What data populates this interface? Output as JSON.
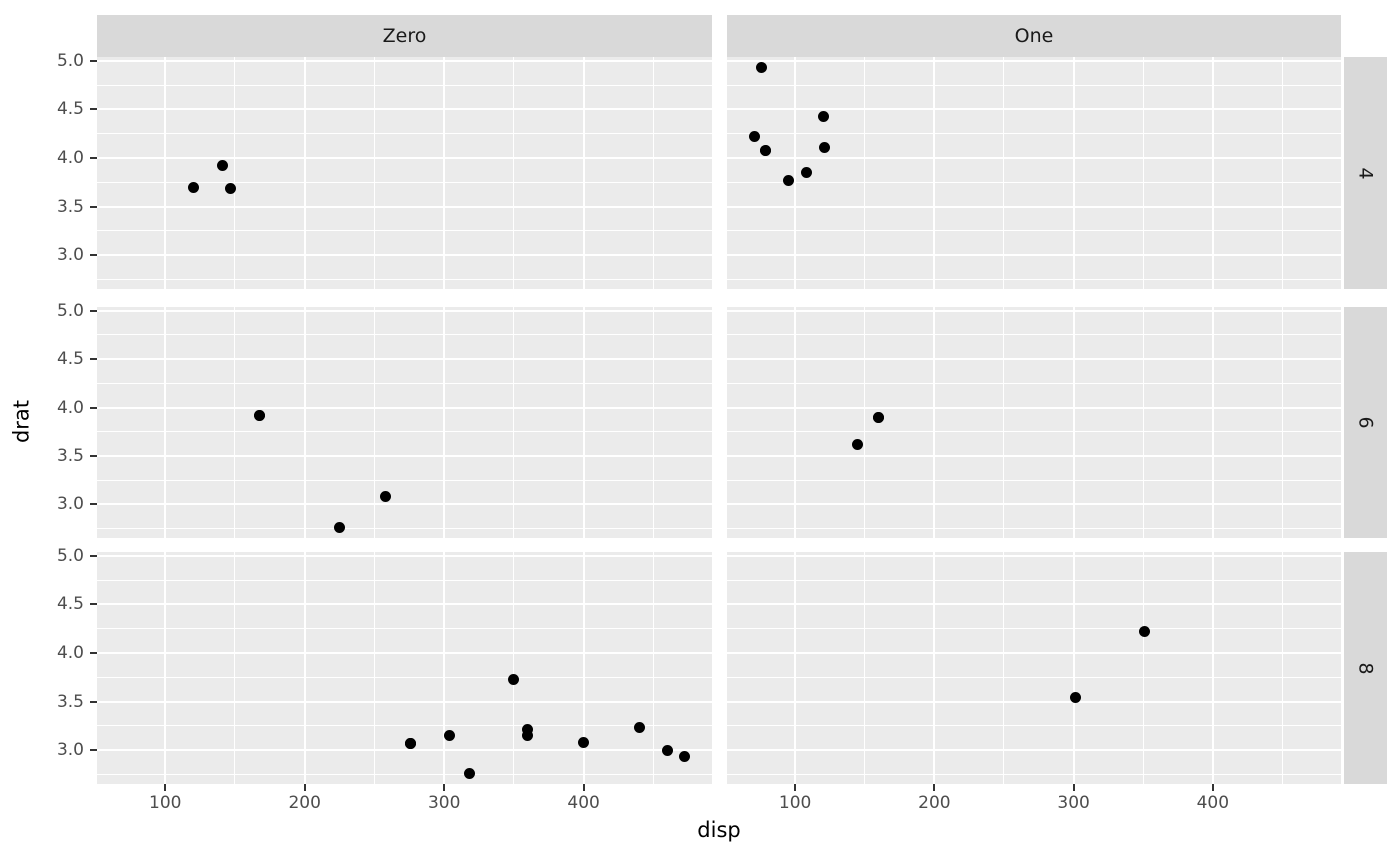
{
  "chart_data": {
    "type": "scatter",
    "title": "",
    "xlabel": "disp",
    "ylabel": "drat",
    "col_facets": [
      "Zero",
      "One"
    ],
    "row_facets": [
      "4",
      "6",
      "8"
    ],
    "x_domain": [
      51.05,
      492.05
    ],
    "y_domain": [
      2.6515,
      5.0385
    ],
    "x_major_ticks": [
      100,
      200,
      300,
      400
    ],
    "x_minor_ticks": [
      150,
      250,
      350,
      450
    ],
    "x_tick_labels": [
      "100",
      "200",
      "300",
      "400"
    ],
    "y_major_ticks": [
      5.0,
      4.5,
      4.0,
      3.5,
      3.0
    ],
    "y_minor_ticks": [
      4.75,
      4.25,
      3.75,
      3.25,
      2.75
    ],
    "y_tick_labels": [
      "5.0",
      "4.5",
      "4.0",
      "3.5",
      "3.0"
    ],
    "grid": true,
    "legend": false,
    "facets": [
      {
        "col": "Zero",
        "row": "4",
        "points": [
          [
            120.1,
            3.7
          ],
          [
            140.8,
            3.92
          ],
          [
            146.7,
            3.69
          ]
        ]
      },
      {
        "col": "One",
        "row": "4",
        "points": [
          [
            108.0,
            3.85
          ],
          [
            78.7,
            4.08
          ],
          [
            75.7,
            4.93
          ],
          [
            71.1,
            4.22
          ],
          [
            79.0,
            4.08
          ],
          [
            120.3,
            4.43
          ],
          [
            95.1,
            3.77
          ],
          [
            121.0,
            4.11
          ]
        ]
      },
      {
        "col": "Zero",
        "row": "6",
        "points": [
          [
            258.0,
            3.08
          ],
          [
            225.0,
            2.76
          ],
          [
            167.6,
            3.92
          ],
          [
            167.6,
            3.92
          ]
        ]
      },
      {
        "col": "One",
        "row": "6",
        "points": [
          [
            160.0,
            3.9
          ],
          [
            160.0,
            3.9
          ],
          [
            145.0,
            3.62
          ]
        ]
      },
      {
        "col": "Zero",
        "row": "8",
        "points": [
          [
            360.0,
            3.15
          ],
          [
            360.0,
            3.21
          ],
          [
            275.8,
            3.07
          ],
          [
            275.8,
            3.07
          ],
          [
            275.8,
            3.07
          ],
          [
            472.0,
            2.93
          ],
          [
            460.0,
            3.0
          ],
          [
            440.0,
            3.23
          ],
          [
            318.0,
            2.76
          ],
          [
            304.0,
            3.15
          ],
          [
            350.0,
            3.73
          ],
          [
            400.0,
            3.08
          ]
        ]
      },
      {
        "col": "One",
        "row": "8",
        "points": [
          [
            351.0,
            4.22
          ],
          [
            301.0,
            3.54
          ]
        ]
      }
    ],
    "colors": {
      "page_bg": "#FFFFFF",
      "panel_bg": "#EBEBEB",
      "strip_bg": "#D9D9D9",
      "grid": "#FFFFFF",
      "point": "#000000",
      "tick_text": "#4D4D4D",
      "tick_mark": "#333333",
      "strip_text": "#1A1A1A",
      "axis_title": "#000000"
    }
  }
}
